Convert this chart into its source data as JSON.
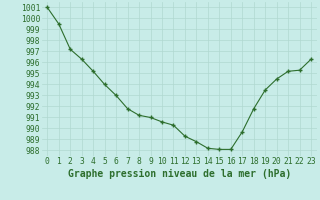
{
  "x": [
    0,
    1,
    2,
    3,
    4,
    5,
    6,
    7,
    8,
    9,
    10,
    11,
    12,
    13,
    14,
    15,
    16,
    17,
    18,
    19,
    20,
    21,
    22,
    23
  ],
  "y": [
    1001.0,
    999.5,
    997.2,
    996.3,
    995.2,
    994.0,
    993.0,
    991.8,
    991.2,
    991.0,
    990.6,
    990.3,
    989.3,
    988.8,
    988.2,
    988.1,
    988.1,
    989.7,
    991.8,
    993.5,
    994.5,
    995.2,
    995.3,
    996.3
  ],
  "line_color": "#2d6e2d",
  "marker_color": "#2d6e2d",
  "bg_color": "#c8ece8",
  "grid_color": "#b0d8d0",
  "title": "Graphe pression niveau de la mer (hPa)",
  "ylabel_ticks": [
    988,
    989,
    990,
    991,
    992,
    993,
    994,
    995,
    996,
    997,
    998,
    999,
    1000,
    1001
  ],
  "ylim": [
    987.5,
    1001.5
  ],
  "xlim": [
    -0.5,
    23.5
  ],
  "title_color": "#2d6e2d",
  "title_fontsize": 7.0,
  "tick_fontsize": 5.8
}
